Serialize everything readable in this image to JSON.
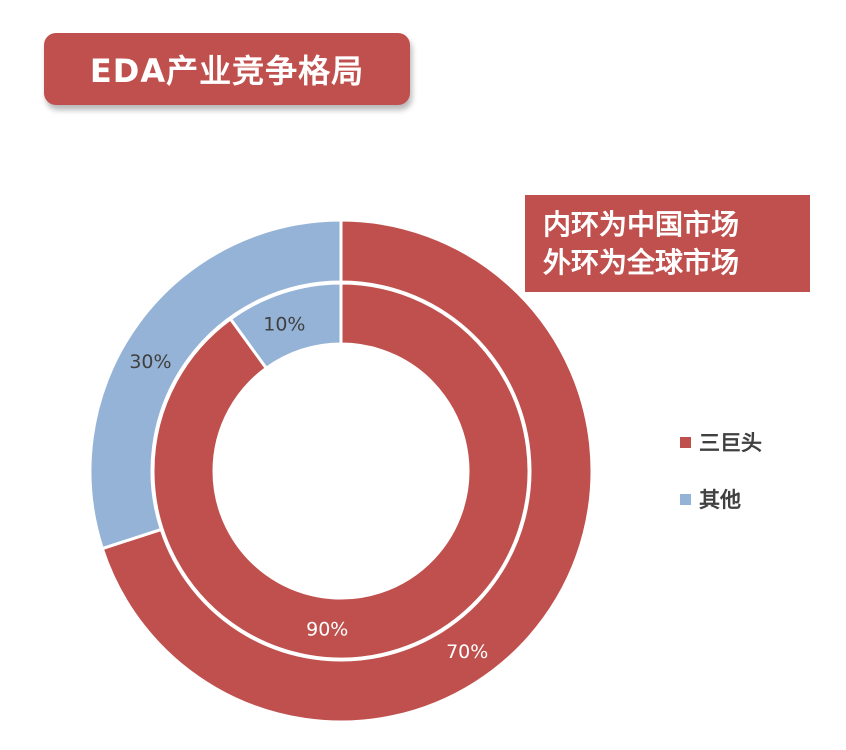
{
  "title": "EDA产业竞争格局",
  "note": {
    "line1": "内环为中国市场",
    "line2": "外环为全球市场"
  },
  "colors": {
    "accent": "#c0504d",
    "secondary": "#95b3d7"
  },
  "chart_data": {
    "type": "pie",
    "subtype": "double-donut",
    "title": "EDA产业竞争格局",
    "legend": {
      "position": "right",
      "entries": [
        "三巨头",
        "其他"
      ]
    },
    "categories": [
      "三巨头",
      "其他"
    ],
    "series": [
      {
        "ring": "outer",
        "values": [
          70,
          30
        ],
        "labels": [
          "70%",
          "30%"
        ]
      },
      {
        "ring": "inner",
        "values": [
          90,
          10
        ],
        "labels": [
          "90%",
          "10%"
        ]
      }
    ],
    "colors": [
      "#c0504d",
      "#95b3d7"
    ]
  }
}
